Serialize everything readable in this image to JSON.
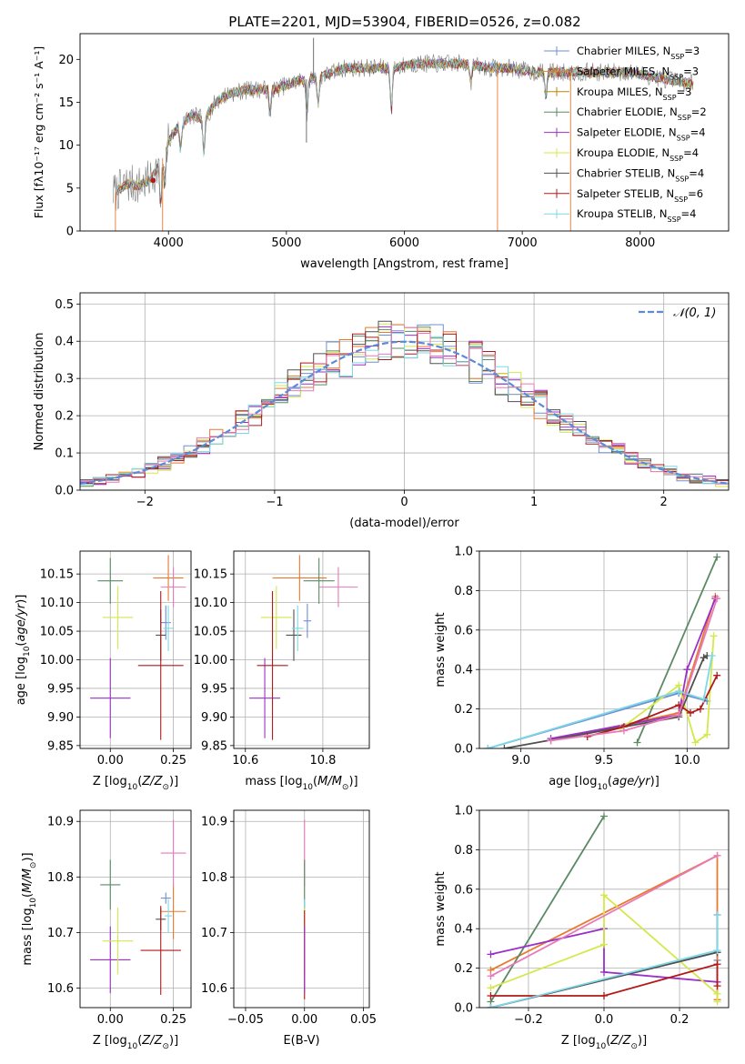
{
  "figure": {
    "title": "PLATE=2201, MJD=53904, FIBERID=0526, z=0.082"
  },
  "colors": {
    "Chabrier MILES": "#6d8fd6",
    "Salpeter MILES": "#e87a2e",
    "Kroupa MILES": "#b8860b",
    "Chabrier ELODIE": "#5b8a64",
    "Salpeter ELODIE": "#9b30c8",
    "Kroupa ELODIE": "#d4e84a",
    "Chabrier STELIB": "#505050",
    "Salpeter STELIB": "#b01a1a",
    "Kroupa STELIB": "#7fd8e6",
    "pink": "#e87ab8",
    "gaussian": "#5b8ad6"
  },
  "chart_data": [
    {
      "id": "spectrum",
      "type": "line",
      "xlabel": "wavelength [Angstrom, rest frame]",
      "ylabel": "Flux [f$_\\lambda$10$^{-17}$ erg cm$^{-2}$ s$^{-1}$ A$^{-1}$]",
      "ylabel_display": "Flux [fλ10⁻¹⁷ erg cm⁻² s⁻¹ A⁻¹]",
      "xlim": [
        3250,
        8750
      ],
      "ylim": [
        0,
        23
      ],
      "xticks": [
        4000,
        5000,
        6000,
        7000,
        8000
      ],
      "yticks": [
        0,
        5,
        10,
        15,
        20
      ],
      "grid": false,
      "legend_placement": "top-right",
      "legend": [
        {
          "main": "Chabrier MILES, N",
          "sub": "SSP",
          "tail": "=3"
        },
        {
          "main": "Salpeter MILES, N",
          "sub": "SSP",
          "tail": "=3"
        },
        {
          "main": "Kroupa MILES, N",
          "sub": "SSP",
          "tail": "=3"
        },
        {
          "main": "Chabrier ELODIE, N",
          "sub": "SSP",
          "tail": "=2"
        },
        {
          "main": "Salpeter ELODIE, N",
          "sub": "SSP",
          "tail": "=4"
        },
        {
          "main": "Kroupa ELODIE, N",
          "sub": "SSP",
          "tail": "=4"
        },
        {
          "main": "Chabrier STELIB, N",
          "sub": "SSP",
          "tail": "=4"
        },
        {
          "main": "Salpeter STELIB, N",
          "sub": "SSP",
          "tail": "=6"
        },
        {
          "main": "Kroupa STELIB, N",
          "sub": "SSP",
          "tail": "=4"
        }
      ],
      "continuum": [
        [
          3550,
          4.5
        ],
        [
          3650,
          5.5
        ],
        [
          3750,
          5.3
        ],
        [
          3850,
          6.0
        ],
        [
          3950,
          8.5
        ],
        [
          4000,
          10.5
        ],
        [
          4100,
          12.5
        ],
        [
          4200,
          13.5
        ],
        [
          4300,
          13.0
        ],
        [
          4400,
          15.0
        ],
        [
          4500,
          16.0
        ],
        [
          4700,
          16.5
        ],
        [
          4900,
          16.5
        ],
        [
          5100,
          17.5
        ],
        [
          5300,
          18.0
        ],
        [
          5500,
          19.0
        ],
        [
          5700,
          19.0
        ],
        [
          5900,
          19.0
        ],
        [
          6100,
          19.5
        ],
        [
          6300,
          19.5
        ],
        [
          6500,
          19.5
        ],
        [
          6700,
          19.0
        ],
        [
          6900,
          19.0
        ],
        [
          7100,
          18.5
        ],
        [
          7300,
          18.5
        ],
        [
          7500,
          18.5
        ],
        [
          7700,
          18.5
        ],
        [
          7900,
          18.5
        ],
        [
          8100,
          18.0
        ],
        [
          8300,
          17.5
        ],
        [
          8500,
          17.0
        ]
      ],
      "absorption_lines": [
        {
          "x": 3934,
          "depth": 5
        },
        {
          "x": 3969,
          "depth": 4
        },
        {
          "x": 4102,
          "depth": 3
        },
        {
          "x": 4300,
          "depth": 4
        },
        {
          "x": 4861,
          "depth": 3
        },
        {
          "x": 5175,
          "depth": 4
        },
        {
          "x": 5270,
          "depth": 3
        },
        {
          "x": 5890,
          "depth": 5
        },
        {
          "x": 6563,
          "depth": 2
        },
        {
          "x": 7200,
          "depth": 3
        }
      ],
      "spikes": [
        {
          "x": 5170,
          "y": 10.3
        },
        {
          "x": 5230,
          "y": 22.5
        },
        {
          "x": 6790,
          "y": 0
        },
        {
          "x": 7410,
          "y": 0
        },
        {
          "x": 3550,
          "y": 0
        },
        {
          "x": 3950,
          "y": 0
        }
      ],
      "marker": {
        "x": 3870,
        "y": 5.9
      }
    },
    {
      "id": "residual_hist",
      "type": "line",
      "xlabel": "(data-model)/error",
      "ylabel": "Normed distribution",
      "xlim": [
        -2.5,
        2.5
      ],
      "ylim": [
        0,
        0.53
      ],
      "xticks": [
        -2,
        -1,
        0,
        1,
        2
      ],
      "yticks": [
        0.0,
        0.1,
        0.2,
        0.3,
        0.4,
        0.5
      ],
      "grid": true,
      "legend": [
        "$\\mathcal{N}(0,1)$"
      ],
      "legend_display": "𝒩(0, 1)",
      "legend_placement": "top-right",
      "bin_width": 0.1
    },
    {
      "id": "age_vs_Z",
      "type": "scatter",
      "xlabel": "Z [log$_{10}$(Z/Z$_\\odot$)]",
      "ylabel": "age  [log$_{10}$(age/yr)]",
      "xlim": [
        -0.12,
        0.32
      ],
      "ylim": [
        9.845,
        10.19
      ],
      "xticks": [
        0.0,
        0.25
      ],
      "yticks": [
        9.85,
        9.9,
        9.95,
        10.0,
        10.05,
        10.1,
        10.15
      ],
      "grid": true,
      "points": [
        {
          "series": "Chabrier MILES",
          "x": 0.22,
          "y": 10.065,
          "xerr": 0.02,
          "yerr": 0.03
        },
        {
          "series": "Salpeter MILES",
          "x": 0.23,
          "y": 10.143,
          "xerr": 0.06,
          "yerr": 0.04
        },
        {
          "series": "Chabrier ELODIE",
          "x": 0.0,
          "y": 10.138,
          "xerr": 0.05,
          "yerr": 0.04
        },
        {
          "series": "Salpeter ELODIE",
          "x": 0.0,
          "y": 9.933,
          "xerr": 0.08,
          "yerr": 0.07
        },
        {
          "series": "Kroupa ELODIE",
          "x": 0.03,
          "y": 10.074,
          "xerr": 0.06,
          "yerr": 0.055
        },
        {
          "series": "Chabrier STELIB",
          "x": 0.2,
          "y": 10.043,
          "xerr": 0.02,
          "yerr": 0.045
        },
        {
          "series": "Salpeter STELIB",
          "x": 0.2,
          "y": 9.99,
          "xerr": 0.09,
          "yerr": 0.13
        },
        {
          "series": "Kroupa STELIB",
          "x": 0.23,
          "y": 10.055,
          "xerr": 0.02,
          "yerr": 0.04
        },
        {
          "series": "pink",
          "x": 0.25,
          "y": 10.127,
          "xerr": 0.05,
          "yerr": 0.035
        }
      ]
    },
    {
      "id": "age_vs_mass",
      "type": "scatter",
      "xlabel": "mass [log$_{10}$(M/M$_\\odot$)]",
      "ylabel": "",
      "xlim": [
        10.57,
        10.92
      ],
      "ylim": [
        9.845,
        10.19
      ],
      "xticks": [
        10.6,
        10.8
      ],
      "yticks": [
        9.85,
        9.9,
        9.95,
        10.0,
        10.05,
        10.1,
        10.15
      ],
      "grid": true,
      "points": [
        {
          "series": "Chabrier MILES",
          "x": 10.76,
          "y": 10.068,
          "xerr": 0.01,
          "yerr": 0.03
        },
        {
          "series": "Salpeter MILES",
          "x": 10.74,
          "y": 10.143,
          "xerr": 0.07,
          "yerr": 0.04
        },
        {
          "series": "Chabrier ELODIE",
          "x": 10.79,
          "y": 10.138,
          "xerr": 0.04,
          "yerr": 0.04
        },
        {
          "series": "Salpeter ELODIE",
          "x": 10.65,
          "y": 9.933,
          "xerr": 0.04,
          "yerr": 0.07
        },
        {
          "series": "Kroupa ELODIE",
          "x": 10.68,
          "y": 10.074,
          "xerr": 0.04,
          "yerr": 0.055
        },
        {
          "series": "Chabrier STELIB",
          "x": 10.725,
          "y": 10.043,
          "xerr": 0.02,
          "yerr": 0.045
        },
        {
          "series": "Salpeter STELIB",
          "x": 10.67,
          "y": 9.99,
          "xerr": 0.04,
          "yerr": 0.13
        },
        {
          "series": "Kroupa STELIB",
          "x": 10.735,
          "y": 10.055,
          "xerr": 0.015,
          "yerr": 0.04
        },
        {
          "series": "pink",
          "x": 10.84,
          "y": 10.127,
          "xerr": 0.05,
          "yerr": 0.035
        }
      ]
    },
    {
      "id": "weight_vs_age",
      "type": "line",
      "xlabel": "age  [log$_{10}$(age/yr)]",
      "ylabel": "mass weight",
      "xlim": [
        8.75,
        10.25
      ],
      "ylim": [
        0,
        1.0
      ],
      "xticks": [
        9.0,
        9.5,
        10.0
      ],
      "yticks": [
        0.0,
        0.2,
        0.4,
        0.6,
        0.8,
        1.0
      ],
      "grid": true,
      "series": [
        {
          "name": "Chabrier MILES",
          "x": [
            8.8,
            9.95,
            10.12
          ],
          "y": [
            0.0,
            0.28,
            0.24
          ]
        },
        {
          "name": "Salpeter MILES",
          "x": [
            9.18,
            9.95,
            10.17
          ],
          "y": [
            0.04,
            0.18,
            0.77
          ]
        },
        {
          "name": "Chabrier ELODIE",
          "x": [
            9.7,
            10.18
          ],
          "y": [
            0.03,
            0.97
          ]
        },
        {
          "name": "Salpeter ELODIE",
          "x": [
            9.18,
            9.95,
            10.0,
            10.17
          ],
          "y": [
            0.05,
            0.17,
            0.4,
            0.76
          ]
        },
        {
          "name": "Kroupa ELODIE",
          "x": [
            9.6,
            9.95,
            10.05,
            10.12,
            10.16
          ],
          "y": [
            0.1,
            0.32,
            0.03,
            0.07,
            0.57
          ]
        },
        {
          "name": "Chabrier STELIB",
          "x": [
            8.9,
            9.95,
            10.1,
            10.12
          ],
          "y": [
            0.0,
            0.16,
            0.46,
            0.47
          ]
        },
        {
          "name": "Salpeter STELIB",
          "x": [
            9.4,
            9.62,
            9.95,
            10.02,
            10.08,
            10.18
          ],
          "y": [
            0.06,
            0.11,
            0.22,
            0.18,
            0.2,
            0.37
          ]
        },
        {
          "name": "Kroupa STELIB",
          "x": [
            8.8,
            9.95,
            10.1,
            10.15
          ],
          "y": [
            0.0,
            0.29,
            0.25,
            0.47
          ]
        },
        {
          "name": "pink",
          "x": [
            9.18,
            9.62,
            9.95,
            10.18
          ],
          "y": [
            0.04,
            0.09,
            0.17,
            0.76
          ]
        }
      ]
    },
    {
      "id": "mass_vs_Z",
      "type": "scatter",
      "xlabel": "Z [log$_{10}$(Z/Z$_\\odot$)]",
      "ylabel": "mass [log$_{10}$(M/M$_\\odot$)]",
      "xlim": [
        -0.12,
        0.32
      ],
      "ylim": [
        10.565,
        10.92
      ],
      "xticks": [
        0.0,
        0.25
      ],
      "yticks": [
        10.6,
        10.7,
        10.8,
        10.9
      ],
      "grid": true,
      "points": [
        {
          "series": "Chabrier MILES",
          "x": 0.22,
          "y": 10.762,
          "xerr": 0.02,
          "yerr": 0.01
        },
        {
          "series": "Salpeter MILES",
          "x": 0.25,
          "y": 10.738,
          "xerr": 0.05,
          "yerr": 0.05
        },
        {
          "series": "Chabrier ELODIE",
          "x": 0.0,
          "y": 10.786,
          "xerr": 0.04,
          "yerr": 0.045
        },
        {
          "series": "Salpeter ELODIE",
          "x": 0.0,
          "y": 10.651,
          "xerr": 0.08,
          "yerr": 0.06
        },
        {
          "series": "Kroupa ELODIE",
          "x": 0.03,
          "y": 10.685,
          "xerr": 0.06,
          "yerr": 0.06
        },
        {
          "series": "Chabrier STELIB",
          "x": 0.2,
          "y": 10.724,
          "xerr": 0.02,
          "yerr": 0.02
        },
        {
          "series": "Salpeter STELIB",
          "x": 0.2,
          "y": 10.668,
          "xerr": 0.08,
          "yerr": 0.08
        },
        {
          "series": "Kroupa STELIB",
          "x": 0.23,
          "y": 10.73,
          "xerr": 0.015,
          "yerr": 0.03
        },
        {
          "series": "pink",
          "x": 0.25,
          "y": 10.843,
          "xerr": 0.05,
          "yerr": 0.06
        }
      ]
    },
    {
      "id": "mass_vs_ebv",
      "type": "scatter",
      "xlabel": "E(B-V)",
      "ylabel": "",
      "xlim": [
        -0.06,
        0.055
      ],
      "ylim": [
        10.565,
        10.92
      ],
      "xticks": [
        -0.05,
        0.0,
        0.05
      ],
      "yticks": [
        10.6,
        10.7,
        10.8,
        10.9
      ],
      "grid": true,
      "points": [
        {
          "series": "pink",
          "x": 0.0,
          "y": 10.843,
          "xerr": 0.0,
          "yerr": 0.06
        },
        {
          "series": "Chabrier ELODIE",
          "x": 0.0,
          "y": 10.786,
          "xerr": 0.0,
          "yerr": 0.045
        },
        {
          "series": "Kroupa STELIB",
          "x": 0.0,
          "y": 10.73,
          "xerr": 0.0,
          "yerr": 0.03
        },
        {
          "series": "Kroupa ELODIE",
          "x": 0.0,
          "y": 10.685,
          "xerr": 0.0,
          "yerr": 0.06
        },
        {
          "series": "Salpeter STELIB",
          "x": 0.0,
          "y": 10.66,
          "xerr": 0.0,
          "yerr": 0.08
        },
        {
          "series": "Salpeter ELODIE",
          "x": 0.0,
          "y": 10.651,
          "xerr": 0.0,
          "yerr": 0.06
        }
      ]
    },
    {
      "id": "weight_vs_Z",
      "type": "line",
      "xlabel": "Z [log$_{10}$(Z/Z$_\\odot$)]",
      "ylabel": "mass weight",
      "xlim": [
        -0.33,
        0.33
      ],
      "ylim": [
        0,
        1.0
      ],
      "xticks": [
        -0.2,
        0.0,
        0.2
      ],
      "yticks": [
        0.0,
        0.2,
        0.4,
        0.6,
        0.8,
        1.0
      ],
      "grid": true,
      "series": [
        {
          "name": "Chabrier MILES",
          "x": [
            -0.3,
            0.3,
            0.3
          ],
          "y": [
            0.0,
            0.28,
            0.24
          ]
        },
        {
          "name": "Salpeter MILES",
          "x": [
            -0.3,
            0.3,
            0.3
          ],
          "y": [
            0.19,
            0.77,
            0.04
          ]
        },
        {
          "name": "Chabrier ELODIE",
          "x": [
            -0.3,
            0.0
          ],
          "y": [
            0.03,
            0.97
          ]
        },
        {
          "name": "Salpeter ELODIE",
          "x": [
            -0.3,
            0.0,
            0.0,
            0.3
          ],
          "y": [
            0.27,
            0.4,
            0.18,
            0.13
          ]
        },
        {
          "name": "Kroupa ELODIE",
          "x": [
            -0.3,
            0.0,
            0.0,
            0.3,
            0.3
          ],
          "y": [
            0.1,
            0.32,
            0.57,
            0.07,
            0.03
          ]
        },
        {
          "name": "Chabrier STELIB",
          "x": [
            -0.3,
            0.3,
            0.3
          ],
          "y": [
            0.0,
            0.28,
            0.47
          ]
        },
        {
          "name": "Salpeter STELIB",
          "x": [
            -0.3,
            0.0,
            0.3,
            0.3
          ],
          "y": [
            0.06,
            0.06,
            0.22,
            0.11
          ]
        },
        {
          "name": "Kroupa STELIB",
          "x": [
            -0.3,
            0.3,
            0.3
          ],
          "y": [
            0.0,
            0.29,
            0.47
          ]
        },
        {
          "name": "pink",
          "x": [
            -0.3,
            0.3
          ],
          "y": [
            0.16,
            0.77
          ]
        }
      ]
    }
  ]
}
